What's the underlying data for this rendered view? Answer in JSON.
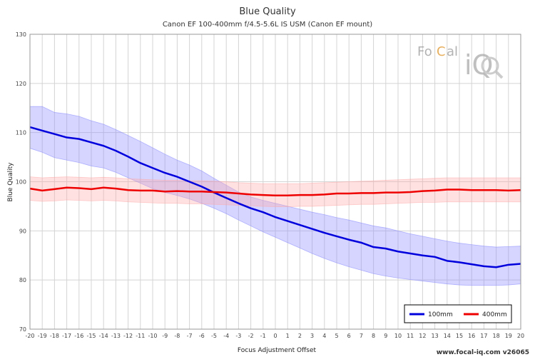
{
  "chart_data": {
    "type": "line",
    "title": "Blue Quality",
    "subtitle": "Canon EF 100-400mm f/4.5-5.6L IS USM (Canon EF mount)",
    "xlabel": "Focus Adjustment Offset",
    "ylabel": "Blue Quality",
    "xlim": [
      -20,
      20
    ],
    "ylim": [
      70,
      130
    ],
    "yticks": [
      70,
      80,
      90,
      100,
      110,
      120,
      130
    ],
    "x": [
      -20,
      -19,
      -18,
      -17,
      -16,
      -15,
      -14,
      -13,
      -12,
      -11,
      -10,
      -9,
      -8,
      -7,
      -6,
      -5,
      -4,
      -3,
      -2,
      -1,
      0,
      1,
      2,
      3,
      4,
      5,
      6,
      7,
      8,
      9,
      10,
      11,
      12,
      13,
      14,
      15,
      16,
      17,
      18,
      19,
      20
    ],
    "grid": true,
    "legend_position": "bottom-right",
    "series": [
      {
        "name": "100mm",
        "color": "#0000dd",
        "band_color": "#8888ff",
        "values": [
          111.1,
          110.4,
          109.7,
          109.0,
          108.7,
          108.0,
          107.3,
          106.3,
          105.1,
          103.8,
          102.8,
          101.8,
          101.0,
          100.0,
          99.0,
          97.8,
          96.7,
          95.6,
          94.6,
          93.8,
          92.8,
          92.0,
          91.2,
          90.4,
          89.6,
          88.9,
          88.2,
          87.6,
          86.7,
          86.4,
          85.8,
          85.4,
          85.0,
          84.7,
          83.9,
          83.6,
          83.2,
          82.8,
          82.6,
          83.1,
          83.3
        ],
        "upper": [
          115.3,
          115.3,
          114.1,
          113.8,
          113.3,
          112.4,
          111.7,
          110.6,
          109.4,
          108.2,
          106.9,
          105.6,
          104.4,
          103.4,
          102.2,
          100.7,
          99.3,
          97.9,
          96.9,
          96.2,
          95.6,
          95.0,
          94.4,
          93.8,
          93.3,
          92.7,
          92.2,
          91.6,
          91.0,
          90.6,
          90.0,
          89.4,
          88.9,
          88.4,
          87.9,
          87.5,
          87.2,
          86.9,
          86.7,
          86.8,
          86.9
        ],
        "lower": [
          106.8,
          106.0,
          104.9,
          104.4,
          103.9,
          103.2,
          102.8,
          101.9,
          100.8,
          99.7,
          98.6,
          97.8,
          97.2,
          96.5,
          95.6,
          94.6,
          93.5,
          92.2,
          91.0,
          89.8,
          88.7,
          87.6,
          86.5,
          85.4,
          84.4,
          83.5,
          82.7,
          82.0,
          81.3,
          80.8,
          80.4,
          80.1,
          79.8,
          79.5,
          79.2,
          79.0,
          78.9,
          78.9,
          78.9,
          79.0,
          79.2
        ]
      },
      {
        "name": "400mm",
        "color": "#ee0000",
        "band_color": "#ffaaaa",
        "values": [
          98.6,
          98.2,
          98.5,
          98.8,
          98.7,
          98.5,
          98.8,
          98.6,
          98.3,
          98.2,
          98.2,
          98.0,
          98.1,
          98.0,
          98.0,
          97.9,
          97.8,
          97.6,
          97.4,
          97.3,
          97.2,
          97.2,
          97.3,
          97.3,
          97.4,
          97.6,
          97.6,
          97.7,
          97.7,
          97.8,
          97.8,
          97.9,
          98.1,
          98.2,
          98.4,
          98.4,
          98.3,
          98.3,
          98.3,
          98.2,
          98.3
        ],
        "upper": [
          101.0,
          100.8,
          100.9,
          101.0,
          100.9,
          100.8,
          100.9,
          100.8,
          100.6,
          100.5,
          100.4,
          100.3,
          100.3,
          100.2,
          100.2,
          100.1,
          100.0,
          99.8,
          99.7,
          99.6,
          99.6,
          99.6,
          99.6,
          99.7,
          99.8,
          99.9,
          100.0,
          100.1,
          100.2,
          100.3,
          100.4,
          100.5,
          100.6,
          100.7,
          100.8,
          100.8,
          100.8,
          100.8,
          100.8,
          100.8,
          100.8
        ],
        "lower": [
          96.2,
          96.0,
          96.1,
          96.3,
          96.2,
          96.1,
          96.2,
          96.1,
          95.9,
          95.8,
          95.7,
          95.6,
          95.6,
          95.5,
          95.5,
          95.4,
          95.3,
          95.2,
          95.1,
          95.0,
          94.9,
          94.9,
          95.0,
          95.0,
          95.1,
          95.2,
          95.3,
          95.4,
          95.4,
          95.5,
          95.6,
          95.7,
          95.8,
          95.8,
          95.9,
          95.9,
          95.9,
          95.9,
          95.9,
          95.9,
          95.9
        ]
      }
    ]
  },
  "branding": {
    "logo_text_a": "Fo",
    "logo_text_b": "C",
    "logo_text_c": "al",
    "logo_text_d": "iQ",
    "watermark": "www.focal-iq.com  v26065"
  }
}
